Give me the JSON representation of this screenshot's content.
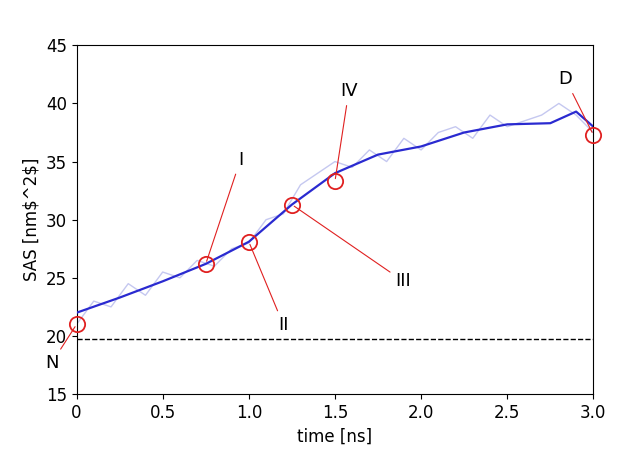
{
  "chart_data": {
    "type": "line",
    "x_label": "time [ns]",
    "y_label": "SAS [nm$^2$]",
    "xlim": [
      0,
      3.0
    ],
    "xticks": [
      0,
      0.5,
      {
        "value": 1.0,
        "label": "1.0"
      },
      1.5,
      {
        "value": 2.0,
        "label": "2.0"
      },
      2.5,
      {
        "value": 3.0,
        "label": "3.0"
      }
    ],
    "ylim": [
      15,
      45
    ],
    "yticks": [
      15,
      20,
      25,
      30,
      35,
      40,
      45
    ],
    "grid": false,
    "series": [
      {
        "color": "#c5c8f0",
        "line_style": "solid",
        "x": [
          0,
          0.1,
          0.2,
          0.3,
          0.4,
          0.5,
          0.6,
          0.7,
          0.8,
          0.9,
          1.0,
          1.1,
          1.2,
          1.3,
          1.4,
          1.5,
          1.6,
          1.7,
          1.8,
          1.9,
          2.0,
          2.1,
          2.2,
          2.3,
          2.4,
          2.5,
          2.6,
          2.7,
          2.8,
          2.9,
          3.0
        ],
        "values": [
          21,
          23,
          22.5,
          24.5,
          23.5,
          25.5,
          25,
          26.5,
          26,
          27.5,
          28,
          30,
          30.5,
          33,
          34,
          35,
          34.5,
          36,
          35,
          37,
          36,
          37.5,
          38,
          37,
          39,
          38,
          38.5,
          39,
          40,
          39,
          37.5
        ]
      },
      {
        "color": "#2a2ad0",
        "line_style": "solid",
        "x": [
          0,
          0.25,
          0.5,
          0.75,
          1.0,
          1.25,
          1.5,
          1.75,
          2.0,
          2.25,
          2.5,
          2.75,
          2.9,
          3.0
        ],
        "values": [
          22.0,
          23.3,
          24.7,
          26.2,
          28.1,
          31.3,
          34.0,
          35.6,
          36.3,
          37.5,
          38.2,
          38.3,
          39.3,
          38.0
        ]
      }
    ],
    "hline": {
      "y": 19.7,
      "color": "black",
      "line_style": "dashed"
    },
    "annotations": [
      {
        "text": "N",
        "x": 0,
        "y": 21.0,
        "color": "#e02020"
      },
      {
        "text": "I",
        "x": 0.75,
        "y": 26.2,
        "color": "#e02020"
      },
      {
        "text": "II",
        "x": 1.0,
        "y": 28.1,
        "color": "#e02020"
      },
      {
        "text": "III",
        "x": 1.25,
        "y": 31.3,
        "color": "#e02020"
      },
      {
        "text": "IV",
        "x": 1.5,
        "y": 33.3,
        "color": "#e02020"
      },
      {
        "text": "D",
        "x": 3.0,
        "y": 37.3,
        "color": "#e02020"
      }
    ]
  }
}
